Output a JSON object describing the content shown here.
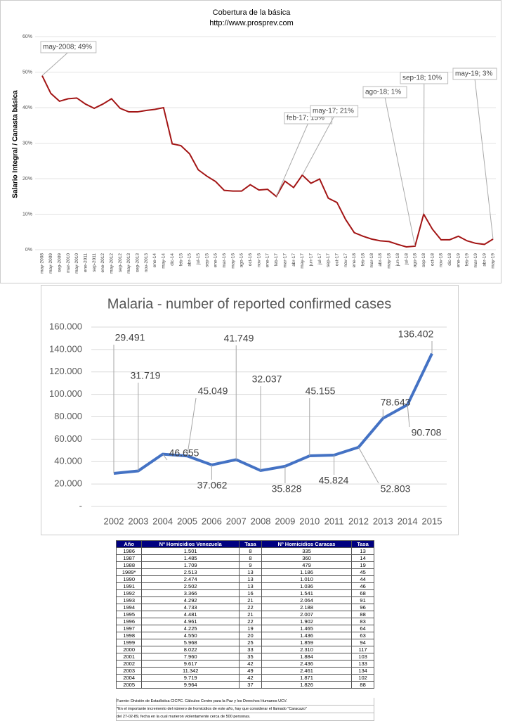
{
  "chart_data": [
    {
      "type": "line",
      "title": "Cobertura de la básica",
      "subtitle": "http://www.prosprev.com",
      "y_label": "Salario Integral / Canasta básica",
      "color": "#a31515",
      "categories": [
        "may-2008",
        "may-2009",
        "sep-2009",
        "mar-2010",
        "may-2010",
        "ene-2011",
        "sep-2011",
        "ene-2012",
        "may-2012",
        "sep-2012",
        "may-2013",
        "sep-2013",
        "nov-2013",
        "ene-14",
        "may-14",
        "dic-14",
        "feb-15",
        "abr-15",
        "jul-15",
        "sep-15",
        "ene-16",
        "mar-16",
        "may-16",
        "ago-16",
        "oct-16",
        "nov-16",
        "ene-17",
        "feb-17",
        "mar-17",
        "abr-17",
        "may-17",
        "jun-17",
        "jul-17",
        "sep-17",
        "oct-17",
        "nov-17",
        "ene-18",
        "feb-18",
        "mar-18",
        "abr-18",
        "may-18",
        "jun-18",
        "jul-18",
        "ago-18",
        "sep-18",
        "oct-18",
        "nov-18",
        "dic-18",
        "ene-19",
        "feb-19",
        "mar-19",
        "abr-19",
        "may-19"
      ],
      "values": [
        49,
        44,
        41.8,
        42.5,
        42.7,
        41,
        39.8,
        41,
        42.5,
        39.8,
        38.8,
        38.8,
        39.2,
        39.5,
        40,
        29.8,
        29.3,
        27,
        22.5,
        20.7,
        19.2,
        16.7,
        16.5,
        16.5,
        18.3,
        16.8,
        17,
        15,
        19.3,
        17.5,
        21,
        18.7,
        19.9,
        14.5,
        13.3,
        8.5,
        4.8,
        3.8,
        3,
        2.5,
        2.3,
        1.5,
        0.8,
        1,
        10,
        5.8,
        2.8,
        2.8,
        3.8,
        2.5,
        1.8,
        1.5,
        3
      ],
      "ylim": [
        0,
        60
      ],
      "yticks": [
        {
          "value": 0,
          "label": "0%"
        },
        {
          "value": 10,
          "label": "10%"
        },
        {
          "value": 20,
          "label": "20%"
        },
        {
          "value": 30,
          "label": "30%"
        },
        {
          "value": 40,
          "label": "40%"
        },
        {
          "value": 50,
          "label": "50%"
        },
        {
          "value": 60,
          "label": "60%"
        }
      ],
      "grid": true,
      "annotations": [
        {
          "text": "may-2008; 49%",
          "x": "may-2008"
        },
        {
          "text": "feb-17; 15%",
          "x": "feb-17"
        },
        {
          "text": "may-17; 21%",
          "x": "may-17"
        },
        {
          "text": "ago-18; 1%",
          "x": "ago-18"
        },
        {
          "text": "sep-18; 10%",
          "x": "sep-18"
        },
        {
          "text": "may-19; 3%",
          "x": "may-19"
        }
      ]
    },
    {
      "type": "line",
      "title": "Malaria - number of reported confirmed cases",
      "color": "#4472c4",
      "categories": [
        "2002",
        "2003",
        "2004",
        "2005",
        "2006",
        "2007",
        "2008",
        "2009",
        "2010",
        "2011",
        "2012",
        "2013",
        "2014",
        "2015"
      ],
      "values": [
        29491,
        31719,
        46655,
        45049,
        37062,
        41749,
        32037,
        35828,
        45155,
        45824,
        52803,
        78643,
        90708,
        136402
      ],
      "value_labels": [
        "29.491",
        "31.719",
        "46.655",
        "45.049",
        "37.062",
        "41.749",
        "32.037",
        "35.828",
        "45.155",
        "45.824",
        "52.803",
        "78.643",
        "90.708",
        "136.402"
      ],
      "ylim": [
        0,
        160000
      ],
      "yticks": [
        {
          "value": 0,
          "label": "-"
        },
        {
          "value": 20000,
          "label": "20.000"
        },
        {
          "value": 40000,
          "label": "40.000"
        },
        {
          "value": 60000,
          "label": "60.000"
        },
        {
          "value": 80000,
          "label": "80.000"
        },
        {
          "value": 100000,
          "label": "100.000"
        },
        {
          "value": 120000,
          "label": "120.000"
        },
        {
          "value": 140000,
          "label": "140.000"
        },
        {
          "value": 160000,
          "label": "160.000"
        }
      ],
      "grid": true
    }
  ],
  "table": {
    "header": [
      "Año",
      "Nº Homicidios Venezuela",
      "Tasa",
      "Nº Homicidios Caracas",
      "Tasa"
    ],
    "rows": [
      [
        "1986",
        "1.501",
        "8",
        "335",
        "13"
      ],
      [
        "1987",
        "1.485",
        "8",
        "360",
        "14"
      ],
      [
        "1988",
        "1.709",
        "9",
        "479",
        "19"
      ],
      [
        "1989*",
        "2.513",
        "13",
        "1.186",
        "45"
      ],
      [
        "1990",
        "2.474",
        "13",
        "1.010",
        "44"
      ],
      [
        "1991",
        "2.502",
        "13",
        "1.036",
        "46"
      ],
      [
        "1992",
        "3.366",
        "16",
        "1.541",
        "68"
      ],
      [
        "1993",
        "4.292",
        "21",
        "2.064",
        "91"
      ],
      [
        "1994",
        "4.733",
        "22",
        "2.188",
        "96"
      ],
      [
        "1995",
        "4.481",
        "21",
        "2.007",
        "88"
      ],
      [
        "1996",
        "4.961",
        "22",
        "1.902",
        "83"
      ],
      [
        "1997",
        "4.225",
        "19",
        "1.465",
        "64"
      ],
      [
        "1998",
        "4.550",
        "20",
        "1.436",
        "63"
      ],
      [
        "1999",
        "5.968",
        "25",
        "1.859",
        "94"
      ],
      [
        "2000",
        "8.022",
        "33",
        "2.310",
        "117"
      ],
      [
        "2001",
        "7.960",
        "35",
        "1.884",
        "103"
      ],
      [
        "2002",
        "9.617",
        "42",
        "2.436",
        "133"
      ],
      [
        "2003",
        "11.342",
        "49",
        "2.461",
        "134"
      ],
      [
        "2004",
        "9.719",
        "42",
        "1.871",
        "102"
      ],
      [
        "2005",
        "9.964",
        "37",
        "1.826",
        "88"
      ]
    ],
    "notes": [
      "Fuente: División de Estadística CICPC. Cálculos Centro para la Paz y los Derechos Humanos UCV.",
      "*En el importante incremento del número de homicidios de este año, hay  que  considerar el llamado \"Caracazo\"",
      "del 27-02-89, fecha en la cual  murieron violentamente cerca de 500 personas."
    ]
  }
}
